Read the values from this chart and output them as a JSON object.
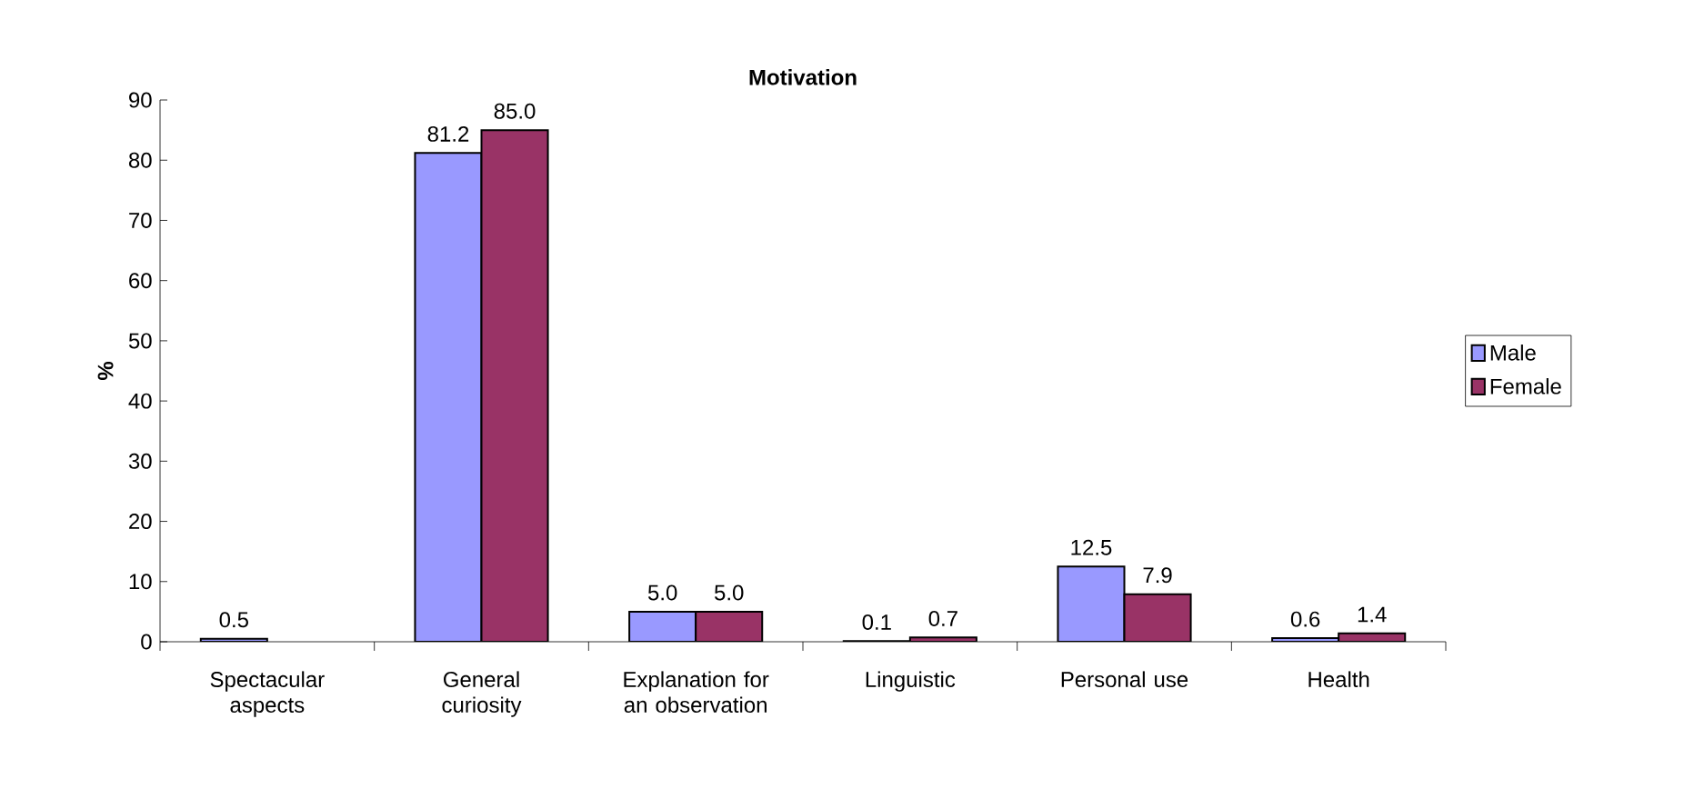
{
  "chart_data": {
    "type": "bar",
    "title": "Motivation",
    "ylabel": "%",
    "categories": [
      "Spectacular aspects",
      "General curiosity",
      "Explanation for an observation",
      "Linguistic",
      "Personal use",
      "Health"
    ],
    "series": [
      {
        "name": "Male",
        "color": "#9999ff",
        "values": [
          0.5,
          81.2,
          5.0,
          0.1,
          12.5,
          0.6
        ],
        "value_labels": [
          "0.5",
          "81.2",
          "5.0",
          "0.1",
          "12.5",
          "0.6"
        ]
      },
      {
        "name": "Female",
        "color": "#993366",
        "values": [
          null,
          85.0,
          5.0,
          0.7,
          7.9,
          1.4
        ],
        "value_labels": [
          null,
          "85.0",
          "5.0",
          "0.7",
          "7.9",
          "1.4"
        ]
      }
    ],
    "ylim": [
      0,
      90
    ],
    "yticks": [
      0,
      10,
      20,
      30,
      40,
      50,
      60,
      70,
      80,
      90
    ],
    "legend": "right"
  }
}
